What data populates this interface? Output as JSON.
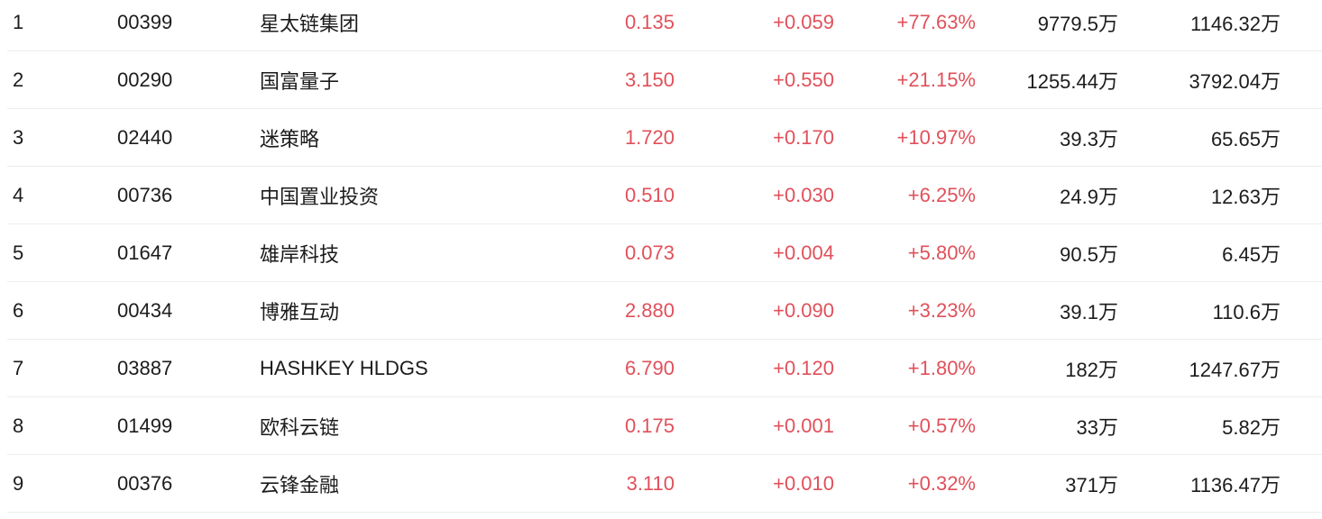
{
  "colors": {
    "up": "#e1505a",
    "text": "#1c1c1c",
    "divider": "#ededed",
    "background": "#ffffff"
  },
  "table": {
    "rows": [
      {
        "rank": "1",
        "code": "00399",
        "name": "星太链集团",
        "price": "0.135",
        "change": "+0.059",
        "change_pct": "+77.63%",
        "volume": "9779.5万",
        "turnover": "1146.32万"
      },
      {
        "rank": "2",
        "code": "00290",
        "name": "国富量子",
        "price": "3.150",
        "change": "+0.550",
        "change_pct": "+21.15%",
        "volume": "1255.44万",
        "turnover": "3792.04万"
      },
      {
        "rank": "3",
        "code": "02440",
        "name": "迷策略",
        "price": "1.720",
        "change": "+0.170",
        "change_pct": "+10.97%",
        "volume": "39.3万",
        "turnover": "65.65万"
      },
      {
        "rank": "4",
        "code": "00736",
        "name": "中国置业投资",
        "price": "0.510",
        "change": "+0.030",
        "change_pct": "+6.25%",
        "volume": "24.9万",
        "turnover": "12.63万"
      },
      {
        "rank": "5",
        "code": "01647",
        "name": "雄岸科技",
        "price": "0.073",
        "change": "+0.004",
        "change_pct": "+5.80%",
        "volume": "90.5万",
        "turnover": "6.45万"
      },
      {
        "rank": "6",
        "code": "00434",
        "name": "博雅互动",
        "price": "2.880",
        "change": "+0.090",
        "change_pct": "+3.23%",
        "volume": "39.1万",
        "turnover": "110.6万"
      },
      {
        "rank": "7",
        "code": "03887",
        "name": "HASHKEY HLDGS",
        "price": "6.790",
        "change": "+0.120",
        "change_pct": "+1.80%",
        "volume": "182万",
        "turnover": "1247.67万"
      },
      {
        "rank": "8",
        "code": "01499",
        "name": "欧科云链",
        "price": "0.175",
        "change": "+0.001",
        "change_pct": "+0.57%",
        "volume": "33万",
        "turnover": "5.82万"
      },
      {
        "rank": "9",
        "code": "00376",
        "name": "云锋金融",
        "price": "3.110",
        "change": "+0.010",
        "change_pct": "+0.32%",
        "volume": "371万",
        "turnover": "1136.47万"
      }
    ]
  }
}
